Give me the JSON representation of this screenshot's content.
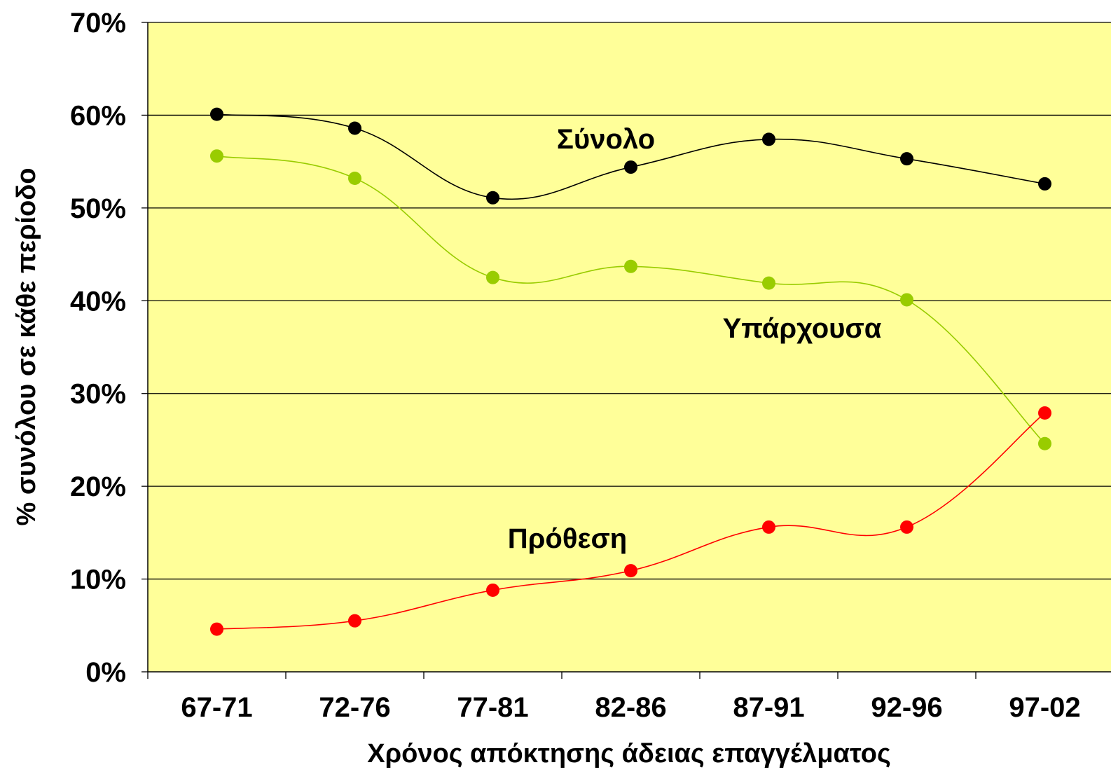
{
  "chart_data": {
    "type": "line",
    "xlabel": "Χρόνος απόκτησης άδειας επαγγέλματος",
    "ylabel": "% συνόλου σε κάθε περίοδο",
    "categories": [
      "67-71",
      "72-76",
      "77-81",
      "82-86",
      "87-91",
      "92-96",
      "97-02"
    ],
    "ylim": [
      0,
      70
    ],
    "yticks": [
      "0%",
      "10%",
      "20%",
      "30%",
      "40%",
      "50%",
      "60%",
      "70%"
    ],
    "grid": true,
    "plot_background": "#FFFF99",
    "series": [
      {
        "name": "Σύνολο",
        "color": "#000000",
        "values": [
          60.1,
          58.6,
          51.1,
          54.4,
          57.4,
          55.3,
          52.6
        ]
      },
      {
        "name": "Υπάρχουσα",
        "color": "#99CC00",
        "values": [
          55.6,
          53.2,
          42.5,
          43.7,
          41.9,
          40.1,
          24.6
        ]
      },
      {
        "name": "Πρόθεση",
        "color": "#FF0000",
        "values": [
          4.6,
          5.5,
          8.8,
          10.9,
          15.6,
          15.6,
          27.9
        ]
      }
    ]
  }
}
